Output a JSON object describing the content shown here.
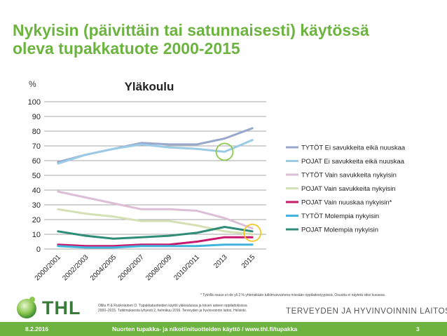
{
  "slide": {
    "title_line1": "Nykyisin (päivittäin tai satunnaisesti) käytössä",
    "title_line2": "oleva tupakkatuote 2000-2015",
    "footnote": "* Tytöillä osuus ei ole yli 2 % yhtenäkään tutkimusvuotena missään oppilaitostyypissä. Osuutta ei näytetä siksi kuvassa.",
    "source_line1": "Ollila H & Ruokolainen O. Tupakkatuotteiden käyttö yläkouluissa ja toisen asteen oppilaitoksissa",
    "source_line2": "2000–2015. Tutkimuksesta lyhyesti 2, helmikuu 2016. Terveyden ja hyvinvoinnin laitos, Helsinki.",
    "logo_text": "THL",
    "institute": "TERVEYDEN JA HYVINVOINNIN LAITOS",
    "footer_date": "8.2.2016",
    "footer_center": "Nuorten tupakka- ja nikotiinituotteiden käyttö / www.thl.fi/tupakka",
    "footer_page": "3",
    "accent_color": "#6cb33f"
  },
  "chart_data": {
    "type": "line",
    "title": "Yläkoulu",
    "ylabel": "%",
    "xlabel": "",
    "ylim": [
      0,
      100
    ],
    "yticks": [
      0,
      10,
      20,
      30,
      40,
      50,
      60,
      70,
      80,
      90,
      100
    ],
    "grid": true,
    "legend_position": "right",
    "categories": [
      "2000/2001",
      "2002/2003",
      "2004/2005",
      "2006/2007",
      "2008/2009",
      "2010/2011",
      "2013",
      "2015"
    ],
    "series": [
      {
        "name": "TYTÖT Ei savukkeita eikä nuuskaa",
        "color": "#98a8cc",
        "values": [
          59,
          64,
          68,
          72,
          71,
          71,
          75,
          82
        ]
      },
      {
        "name": "POJAT Ei savukkeita eikä nuuskaa",
        "color": "#9ccbe6",
        "values": [
          58,
          64,
          68,
          71,
          69,
          68,
          66,
          74
        ]
      },
      {
        "name": "TYTÖT Vain savukkeita nykyisin",
        "color": "#dcbed6",
        "values": [
          39,
          35,
          31,
          27,
          27,
          26,
          21,
          14
        ]
      },
      {
        "name": "POJAT Vain savukkeita nykyisin",
        "color": "#d3e1b4",
        "values": [
          27,
          24,
          22,
          19,
          19,
          16,
          12,
          10
        ]
      },
      {
        "name": "POJAT Vain nuuskaa nykyisin*",
        "color": "#c8196e",
        "values": [
          3,
          2,
          2,
          3,
          3,
          5,
          8,
          8
        ]
      },
      {
        "name": "TYTÖT Molempia nykyisin",
        "color": "#41b4dc",
        "values": [
          2,
          1,
          1,
          2,
          2,
          2,
          3,
          3
        ]
      },
      {
        "name": "POJAT Molempia nykyisin",
        "color": "#2e8c78",
        "values": [
          12,
          9,
          7,
          8,
          9,
          11,
          15,
          12
        ]
      }
    ],
    "highlights": [
      {
        "category": "2013",
        "value": 66,
        "color": "#8cc850"
      },
      {
        "category": "2015",
        "value": 11,
        "color": "#f0c828"
      }
    ]
  }
}
